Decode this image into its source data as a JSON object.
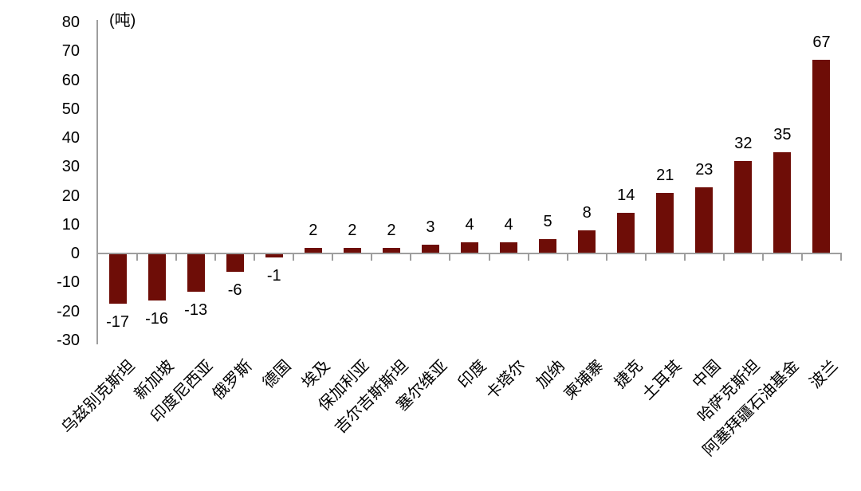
{
  "chart_data": {
    "type": "bar",
    "title": "",
    "unit_label": "(吨)",
    "categories": [
      "乌兹别克斯坦",
      "新加坡",
      "印度尼西亚",
      "俄罗斯",
      "德国",
      "埃及",
      "保加利亚",
      "吉尔吉斯斯坦",
      "塞尔维亚",
      "印度",
      "卡塔尔",
      "加纳",
      "柬埔寨",
      "捷克",
      "土耳其",
      "中国",
      "哈萨克斯坦",
      "阿塞拜疆石油基金",
      "波兰"
    ],
    "values": [
      -17,
      -16,
      -13,
      -6,
      -1,
      2,
      2,
      2,
      3,
      4,
      4,
      5,
      8,
      14,
      21,
      23,
      32,
      35,
      67
    ],
    "data_labels": [
      "-17",
      "-16",
      "-13",
      "-6",
      "-1",
      "2",
      "2",
      "2",
      "3",
      "4",
      "4",
      "5",
      "8",
      "14",
      "21",
      "23",
      "32",
      "35",
      "67"
    ],
    "y_ticks": [
      80,
      70,
      60,
      50,
      40,
      30,
      20,
      10,
      0,
      -10,
      -20,
      -30
    ],
    "ylim": [
      -30,
      80
    ],
    "xlabel": "",
    "ylabel": "",
    "grid": false,
    "legend_position": "none",
    "bar_color": "#6E0D07",
    "axis_color": "#9E9E9E",
    "text_color": "#000000"
  }
}
